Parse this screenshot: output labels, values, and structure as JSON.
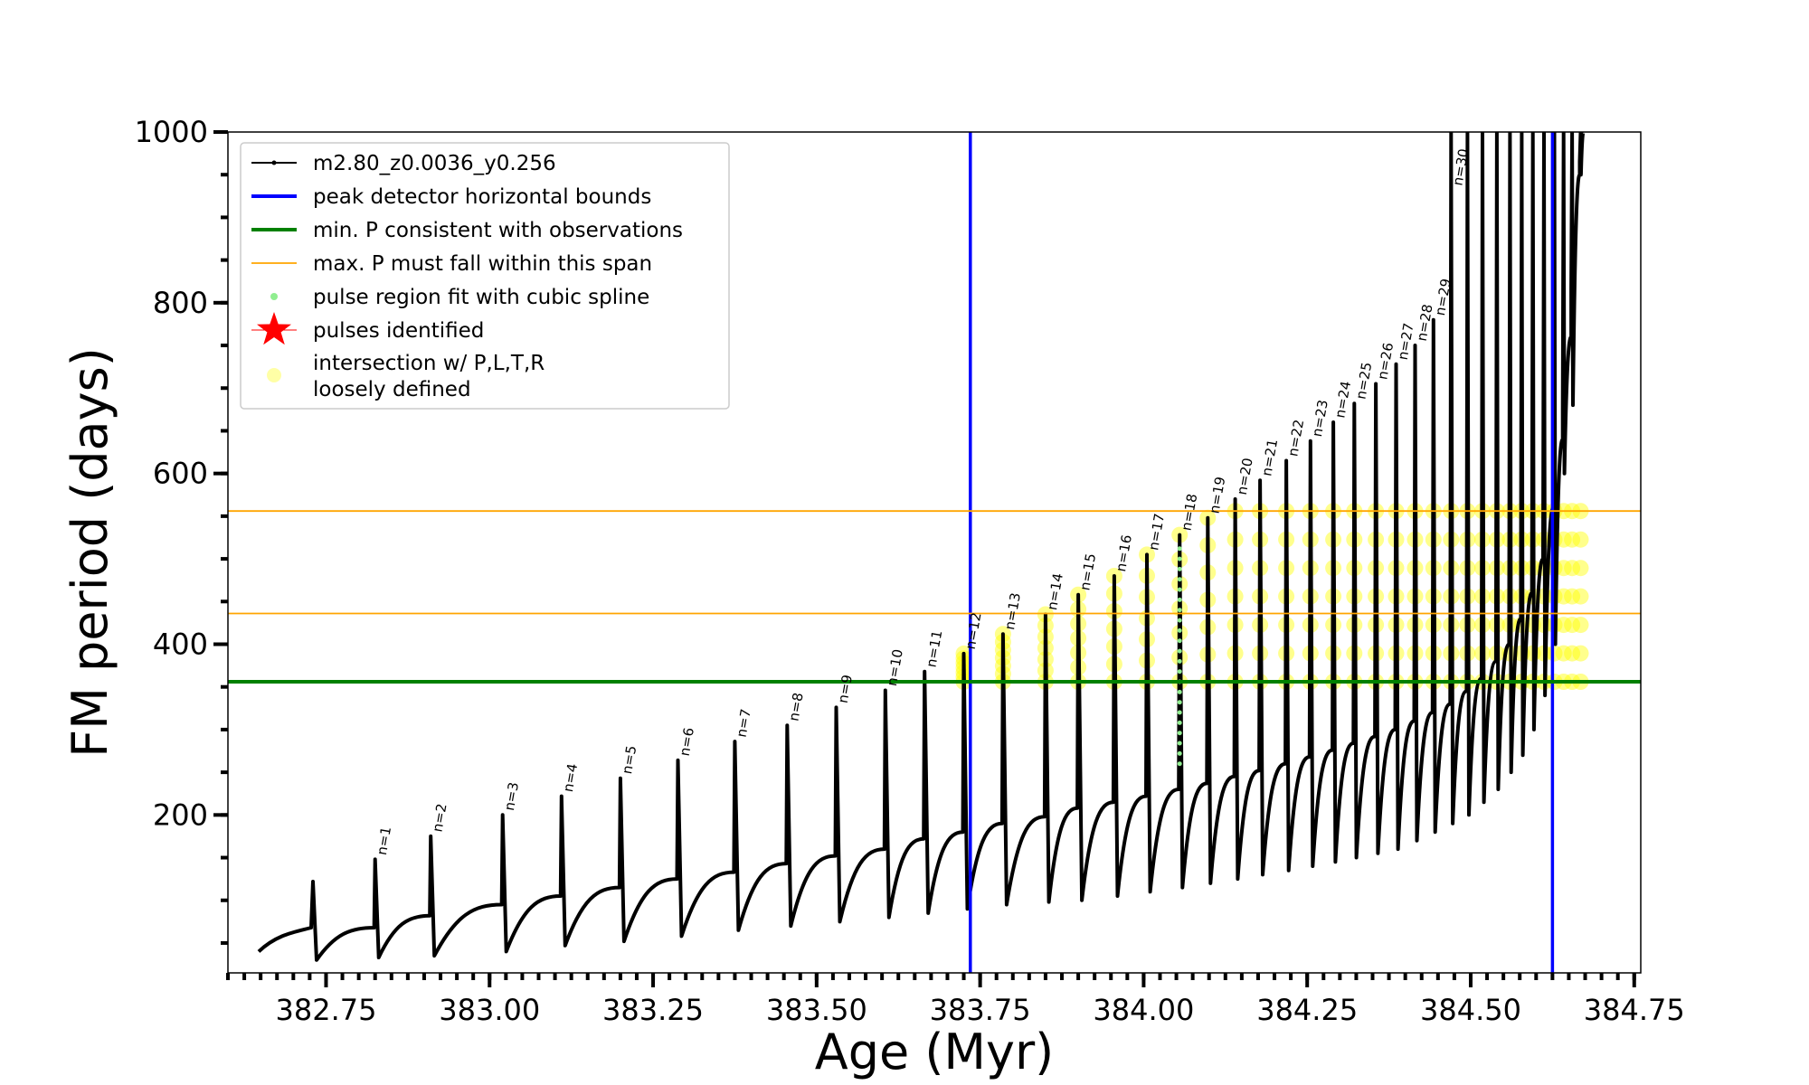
{
  "chart_data": {
    "type": "line",
    "title": "",
    "xlabel": "Age (Myr)",
    "ylabel": "FM period (days)",
    "xlim": [
      382.6,
      384.76
    ],
    "ylim": [
      15,
      1000
    ],
    "xticks": [
      382.75,
      383.0,
      383.25,
      383.5,
      383.75,
      384.0,
      384.25,
      384.5,
      384.75
    ],
    "xtick_labels": [
      "382.75",
      "383.00",
      "383.25",
      "383.50",
      "383.75",
      "384.00",
      "384.25",
      "384.50",
      "384.75"
    ],
    "yticks": [
      200,
      400,
      600,
      800,
      1000
    ],
    "ytick_labels": [
      "200",
      "400",
      "600",
      "800",
      "1000"
    ],
    "grid": false,
    "legend_position": "top-left",
    "colors": {
      "track": "#000000",
      "bounds": "#0000ff",
      "minP": "#008000",
      "maxP": "#ffa500",
      "spline": "#90ee90",
      "pulse": "#ff0000",
      "loose": "#ffff00"
    },
    "legend": [
      {
        "key": "track",
        "label": "m2.80_z0.0036_y0.256",
        "style": "line-marker"
      },
      {
        "key": "bounds",
        "label": "peak detector horizontal bounds",
        "style": "line-thick"
      },
      {
        "key": "minP",
        "label": "min. P consistent with observations",
        "style": "line-thick"
      },
      {
        "key": "maxP",
        "label": "max. P must fall within this span",
        "style": "line-thin"
      },
      {
        "key": "spline",
        "label": "pulse region fit with cubic spline",
        "style": "dot"
      },
      {
        "key": "pulse",
        "label": "pulses identified",
        "style": "star"
      },
      {
        "key": "loose",
        "label": "intersection w/ P,L,T,R",
        "label2": "loosely defined",
        "style": "big-dot"
      }
    ],
    "peak_detector_bounds_x": [
      383.735,
      384.625
    ],
    "min_period": 356,
    "max_period_span": [
      436,
      556
    ],
    "pulses": [
      {
        "label": "",
        "x": 382.73,
        "peak": 122,
        "base": 68,
        "trough": 30
      },
      {
        "label": "n=1",
        "x": 382.825,
        "peak": 148,
        "base": 82,
        "trough": 33
      },
      {
        "label": "n=2",
        "x": 382.91,
        "peak": 175,
        "base": 95,
        "trough": 35
      },
      {
        "label": "n=3",
        "x": 383.02,
        "peak": 200,
        "base": 105,
        "trough": 40
      },
      {
        "label": "n=4",
        "x": 383.11,
        "peak": 222,
        "base": 115,
        "trough": 47
      },
      {
        "label": "n=5",
        "x": 383.2,
        "peak": 243,
        "base": 125,
        "trough": 52
      },
      {
        "label": "n=6",
        "x": 383.288,
        "peak": 264,
        "base": 133,
        "trough": 58
      },
      {
        "label": "n=7",
        "x": 383.375,
        "peak": 286,
        "base": 143,
        "trough": 65
      },
      {
        "label": "n=8",
        "x": 383.455,
        "peak": 305,
        "base": 152,
        "trough": 70
      },
      {
        "label": "n=9",
        "x": 383.53,
        "peak": 326,
        "base": 160,
        "trough": 75
      },
      {
        "label": "n=10",
        "x": 383.605,
        "peak": 346,
        "base": 172,
        "trough": 80
      },
      {
        "label": "n=11",
        "x": 383.665,
        "peak": 368,
        "base": 180,
        "trough": 85
      },
      {
        "label": "n=12",
        "x": 383.725,
        "peak": 389,
        "base": 190,
        "trough": 90
      },
      {
        "label": "n=13",
        "x": 383.785,
        "peak": 412,
        "base": 198,
        "trough": 95
      },
      {
        "label": "n=14",
        "x": 383.85,
        "peak": 435,
        "base": 208,
        "trough": 98
      },
      {
        "label": "n=15",
        "x": 383.9,
        "peak": 458,
        "base": 215,
        "trough": 100
      },
      {
        "label": "n=16",
        "x": 383.955,
        "peak": 480,
        "base": 222,
        "trough": 105
      },
      {
        "label": "n=17",
        "x": 384.005,
        "peak": 505,
        "base": 230,
        "trough": 110
      },
      {
        "label": "n=18",
        "x": 384.055,
        "peak": 528,
        "base": 237,
        "trough": 115
      },
      {
        "label": "n=19",
        "x": 384.098,
        "peak": 548,
        "base": 245,
        "trough": 120
      },
      {
        "label": "n=20",
        "x": 384.14,
        "peak": 570,
        "base": 252,
        "trough": 125
      },
      {
        "label": "n=21",
        "x": 384.178,
        "peak": 592,
        "base": 260,
        "trough": 130
      },
      {
        "label": "n=22",
        "x": 384.218,
        "peak": 615,
        "base": 268,
        "trough": 135
      },
      {
        "label": "n=23",
        "x": 384.255,
        "peak": 638,
        "base": 276,
        "trough": 140
      },
      {
        "label": "n=24",
        "x": 384.29,
        "peak": 660,
        "base": 284,
        "trough": 145
      },
      {
        "label": "n=25",
        "x": 384.322,
        "peak": 682,
        "base": 292,
        "trough": 150
      },
      {
        "label": "n=26",
        "x": 384.355,
        "peak": 705,
        "base": 300,
        "trough": 155
      },
      {
        "label": "n=27",
        "x": 384.386,
        "peak": 728,
        "base": 310,
        "trough": 160
      },
      {
        "label": "n=28",
        "x": 384.415,
        "peak": 750,
        "base": 320,
        "trough": 170
      },
      {
        "label": "n=29",
        "x": 384.443,
        "peak": 780,
        "base": 330,
        "trough": 180
      },
      {
        "label": "n=30",
        "x": 384.47,
        "peak": 1000,
        "base": 345,
        "trough": 190
      },
      {
        "label": "",
        "x": 384.495,
        "peak": 1000,
        "base": 360,
        "trough": 200
      },
      {
        "label": "",
        "x": 384.518,
        "peak": 1000,
        "base": 380,
        "trough": 215
      },
      {
        "label": "",
        "x": 384.54,
        "peak": 1000,
        "base": 400,
        "trough": 230
      },
      {
        "label": "",
        "x": 384.56,
        "peak": 1000,
        "base": 430,
        "trough": 250
      },
      {
        "label": "",
        "x": 384.578,
        "peak": 1000,
        "base": 460,
        "trough": 270
      },
      {
        "label": "",
        "x": 384.595,
        "peak": 1000,
        "base": 500,
        "trough": 300
      },
      {
        "label": "",
        "x": 384.612,
        "peak": 1000,
        "base": 560,
        "trough": 340
      },
      {
        "label": "",
        "x": 384.628,
        "peak": 1000,
        "base": 640,
        "trough": 400
      },
      {
        "label": "",
        "x": 384.642,
        "peak": 1000,
        "base": 760,
        "trough": 600
      },
      {
        "label": "",
        "x": 384.655,
        "peak": 1000,
        "base": 950,
        "trough": 680
      },
      {
        "label": "",
        "x": 384.668,
        "peak": 1000,
        "base": 1000,
        "trough": 950
      }
    ],
    "series_end": {
      "x": 384.672,
      "y": 1000
    }
  }
}
